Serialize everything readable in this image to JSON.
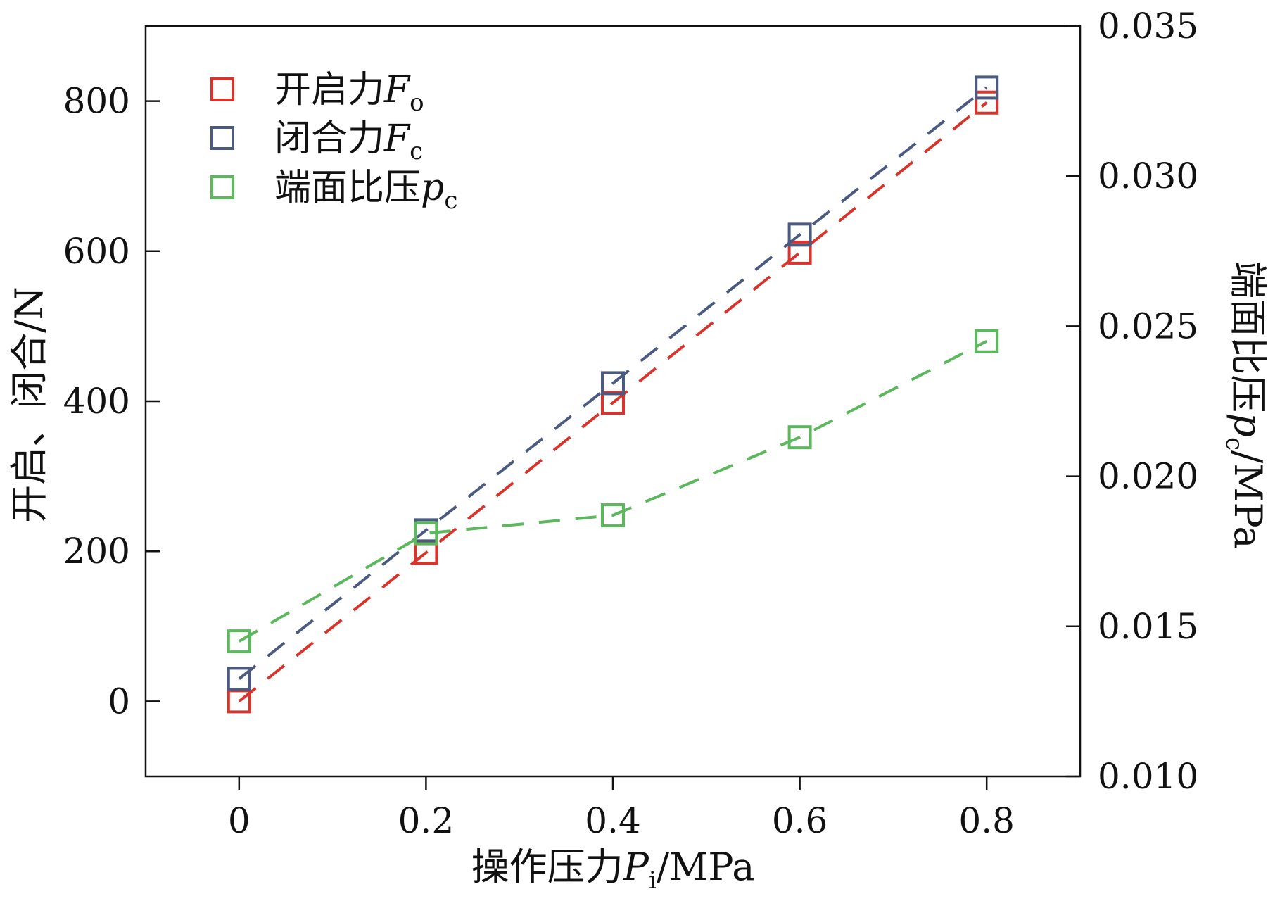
{
  "chart_data": {
    "type": "scatter",
    "x_label_main": "操作压力",
    "x_label_sym": "P",
    "x_label_sub": "i",
    "x_label_unit": "/MPa",
    "y_left_label": "开启、闭合/N",
    "y_right_label_main": "端面比压",
    "y_right_label_sym": "p",
    "y_right_label_sub": "c",
    "y_right_label_unit": "/MPa",
    "x_ticks": [
      "0",
      "0.2",
      "0.4",
      "0.6",
      "0.8"
    ],
    "y_left_ticks": [
      "0",
      "200",
      "400",
      "600",
      "800"
    ],
    "y_right_ticks": [
      "0.010",
      "0.015",
      "0.020",
      "0.025",
      "0.030",
      "0.035"
    ],
    "xlim": [
      -0.1,
      0.9
    ],
    "ylim_left": [
      -100,
      900
    ],
    "ylim_right": [
      0.01,
      0.035
    ],
    "x": [
      0,
      0.2,
      0.4,
      0.6,
      0.8
    ],
    "series": [
      {
        "name_main": "开启力",
        "name_sym": "F",
        "name_sub": "o",
        "axis": "left",
        "color": "#d9342b",
        "values": [
          0,
          198,
          398,
          598,
          798
        ]
      },
      {
        "name_main": "闭合力",
        "name_sym": "F",
        "name_sub": "c",
        "axis": "left",
        "color": "#4a5a80",
        "values": [
          30,
          228,
          424,
          622,
          818
        ]
      },
      {
        "name_main": "端面比压",
        "name_sym": "p",
        "name_sub": "c",
        "axis": "right",
        "color": "#5cb85c",
        "values": [
          0.0145,
          0.0181,
          0.0187,
          0.0213,
          0.0245
        ]
      }
    ],
    "legend_position": "top-left",
    "grid": false
  }
}
